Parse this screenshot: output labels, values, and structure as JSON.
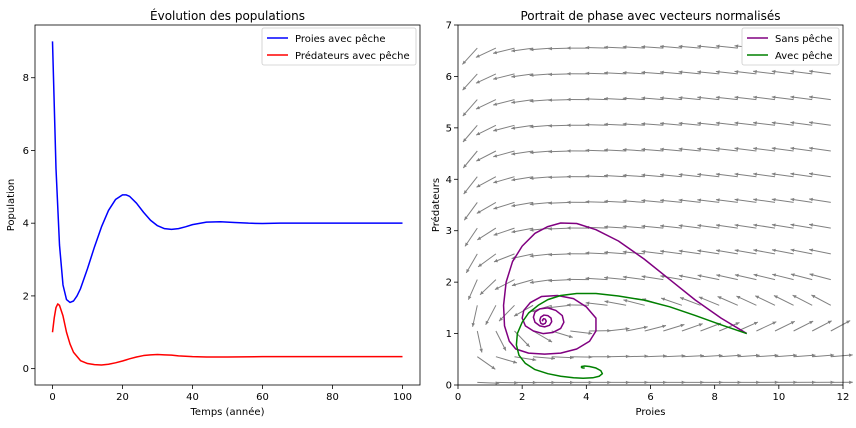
{
  "chart_data": [
    {
      "type": "line",
      "title": "Évolution des populations",
      "xlabel": "Temps (année)",
      "ylabel": "Population",
      "xlim": [
        -5,
        105
      ],
      "ylim": [
        -0.45,
        9.45
      ],
      "xticks": [
        0,
        20,
        40,
        60,
        80,
        100
      ],
      "yticks": [
        0,
        2,
        4,
        6,
        8
      ],
      "legend": "top-right",
      "grid": false,
      "series": [
        {
          "name": "Proies avec pêche",
          "color": "#0000ff",
          "x": [
            0,
            1,
            2,
            3,
            4,
            5,
            6,
            7,
            8,
            10,
            12,
            14,
            16,
            18,
            20,
            21,
            22,
            24,
            26,
            28,
            30,
            32,
            34,
            36,
            38,
            40,
            44,
            48,
            52,
            56,
            60,
            65,
            70,
            80,
            90,
            100
          ],
          "y": [
            9.0,
            5.5,
            3.4,
            2.3,
            1.9,
            1.82,
            1.86,
            2.0,
            2.2,
            2.75,
            3.35,
            3.9,
            4.35,
            4.65,
            4.78,
            4.78,
            4.74,
            4.55,
            4.3,
            4.08,
            3.93,
            3.85,
            3.83,
            3.85,
            3.9,
            3.96,
            4.03,
            4.04,
            4.02,
            4.0,
            3.99,
            4.0,
            4.0,
            4.0,
            4.0,
            4.0
          ]
        },
        {
          "name": "Prédateurs avec pêche",
          "color": "#ff0000",
          "x": [
            0,
            0.5,
            1,
            1.5,
            2,
            3,
            4,
            5,
            6,
            8,
            10,
            12,
            14,
            16,
            18,
            20,
            22,
            24,
            26,
            28,
            30,
            32,
            34,
            36,
            40,
            44,
            50,
            60,
            70,
            80,
            90,
            100
          ],
          "y": [
            1.0,
            1.4,
            1.68,
            1.78,
            1.74,
            1.45,
            1.0,
            0.68,
            0.45,
            0.22,
            0.14,
            0.11,
            0.1,
            0.12,
            0.16,
            0.21,
            0.27,
            0.32,
            0.36,
            0.38,
            0.39,
            0.38,
            0.37,
            0.35,
            0.33,
            0.32,
            0.32,
            0.33,
            0.33,
            0.33,
            0.33,
            0.33
          ]
        }
      ]
    },
    {
      "type": "line",
      "title": "Portrait de phase avec vecteurs normalisés",
      "xlabel": "Proies",
      "ylabel": "Prédateurs",
      "xlim": [
        0,
        12
      ],
      "ylim": [
        0,
        7
      ],
      "xticks": [
        0,
        2,
        4,
        6,
        8,
        10,
        12
      ],
      "yticks": [
        0,
        1,
        2,
        3,
        4,
        5,
        6,
        7
      ],
      "legend": "top-right",
      "grid": false,
      "quiver": {
        "color": "#808080"
      },
      "series": [
        {
          "name": "Sans pêche",
          "color": "#800080",
          "x": [
            9.0,
            8.2,
            7.4,
            6.6,
            5.8,
            5.0,
            4.3,
            3.7,
            3.2,
            2.8,
            2.4,
            2.0,
            1.7,
            1.5,
            1.42,
            1.45,
            1.6,
            1.8,
            2.2,
            2.7,
            3.2,
            3.7,
            4.1,
            4.3,
            4.3,
            4.0,
            3.6,
            3.1,
            2.6,
            2.25,
            2.05,
            2.0,
            2.1,
            2.35,
            2.65,
            2.95,
            3.2,
            3.3,
            3.25,
            3.05,
            2.8,
            2.55,
            2.4,
            2.35,
            2.4,
            2.55,
            2.7,
            2.85,
            2.92,
            2.9,
            2.8,
            2.68,
            2.58,
            2.55,
            2.58,
            2.65,
            2.72,
            2.75,
            2.72,
            2.67,
            2.63,
            2.65
          ],
          "y": [
            1.0,
            1.3,
            1.65,
            2.05,
            2.45,
            2.8,
            3.02,
            3.14,
            3.15,
            3.08,
            2.95,
            2.7,
            2.4,
            2.0,
            1.55,
            1.15,
            0.85,
            0.7,
            0.62,
            0.6,
            0.62,
            0.7,
            0.85,
            1.05,
            1.3,
            1.52,
            1.68,
            1.74,
            1.72,
            1.6,
            1.45,
            1.3,
            1.15,
            1.05,
            1.0,
            1.02,
            1.1,
            1.22,
            1.35,
            1.45,
            1.5,
            1.48,
            1.42,
            1.32,
            1.22,
            1.15,
            1.13,
            1.16,
            1.23,
            1.3,
            1.35,
            1.36,
            1.32,
            1.26,
            1.2,
            1.18,
            1.2,
            1.24,
            1.28,
            1.29,
            1.26,
            1.24
          ]
        },
        {
          "name": "Avec pêche",
          "color": "#008000",
          "x": [
            9.0,
            8.2,
            7.4,
            6.6,
            5.8,
            5.0,
            4.3,
            3.7,
            3.2,
            2.8,
            2.5,
            2.2,
            2.0,
            1.85,
            1.82,
            1.9,
            2.1,
            2.4,
            2.8,
            3.2,
            3.6,
            3.9,
            4.2,
            4.4,
            4.5,
            4.45,
            4.3,
            4.1,
            3.95,
            3.85,
            3.85,
            3.9,
            3.95,
            3.95
          ],
          "y": [
            1.0,
            1.17,
            1.35,
            1.52,
            1.65,
            1.73,
            1.78,
            1.78,
            1.74,
            1.66,
            1.55,
            1.4,
            1.22,
            1.0,
            0.78,
            0.58,
            0.42,
            0.3,
            0.22,
            0.17,
            0.14,
            0.13,
            0.14,
            0.17,
            0.22,
            0.28,
            0.33,
            0.36,
            0.37,
            0.36,
            0.34,
            0.33,
            0.33,
            0.33
          ]
        }
      ]
    }
  ]
}
